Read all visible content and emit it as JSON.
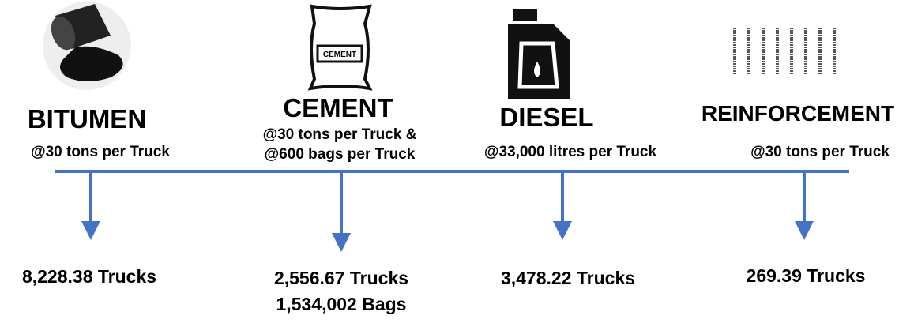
{
  "items": [
    {
      "name": "BITUMEN",
      "rate": [
        "@30 tons per Truck"
      ],
      "results": [
        "8,228.38 Trucks"
      ]
    },
    {
      "name": "CEMENT",
      "rate": [
        "@30 tons per Truck &",
        "@600 bags per Truck"
      ],
      "results": [
        "2,556.67 Trucks",
        "1,534,002 Bags"
      ],
      "bag_label": "CEMENT"
    },
    {
      "name": "DIESEL",
      "rate": [
        "@33,000 litres per Truck"
      ],
      "results": [
        "3,478.22 Trucks"
      ]
    },
    {
      "name": "REINFORCEMENT",
      "rate": [
        "@30 tons per Truck"
      ],
      "results": [
        "269.39 Trucks"
      ]
    }
  ]
}
